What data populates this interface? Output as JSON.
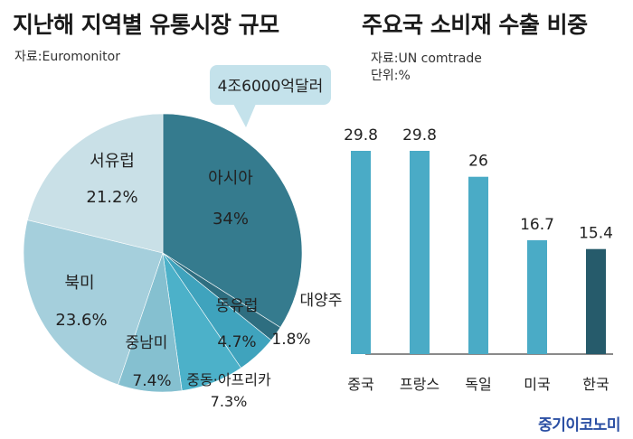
{
  "charts": {
    "left_title": "지난해 지역별 유통시장 규모",
    "left_source": "자료:Euromonitor",
    "callout": "4조6000억달러",
    "right_title": "주요국 소비재 수출 비중",
    "right_source": "자료:UN comtrade",
    "right_unit": "단위:%"
  },
  "brand": "중기이코노미",
  "chart_data": [
    {
      "type": "pie",
      "title": "지난해 지역별 유통시장 규모",
      "total_label": "4조6000억달러",
      "slices": [
        {
          "name": "아시아",
          "value": 34,
          "label": "34%",
          "color": "#357b8e"
        },
        {
          "name": "대양주",
          "value": 1.8,
          "label": "1.8%",
          "color": "#2e6e80"
        },
        {
          "name": "동유럽",
          "value": 4.7,
          "label": "4.7%",
          "color": "#3fa3bd"
        },
        {
          "name": "중동·아프리카",
          "value": 7.3,
          "label": "7.3%",
          "color": "#4cb1c9"
        },
        {
          "name": "중남미",
          "value": 7.4,
          "label": "7.4%",
          "color": "#85c0d0"
        },
        {
          "name": "북미",
          "value": 23.6,
          "label": "23.6%",
          "color": "#a5cfdc"
        },
        {
          "name": "서유럽",
          "value": 21.2,
          "label": "21.2%",
          "color": "#c9e0e7"
        }
      ]
    },
    {
      "type": "bar",
      "title": "주요국 소비재 수출 비중",
      "unit": "%",
      "categories": [
        "중국",
        "프랑스",
        "독일",
        "미국",
        "한국"
      ],
      "values": [
        29.8,
        29.8,
        26,
        16.7,
        15.4
      ],
      "value_labels": [
        "29.8",
        "29.8",
        "26",
        "16.7",
        "15.4"
      ],
      "colors": [
        "#4aabc6",
        "#4aabc6",
        "#4aabc6",
        "#4aabc6",
        "#265b6b"
      ]
    }
  ]
}
